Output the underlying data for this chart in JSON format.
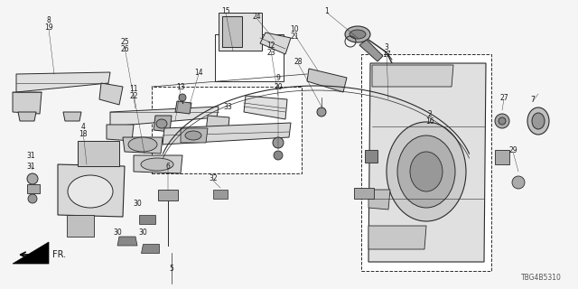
{
  "part_number": "TBG4B5310",
  "bg_color": "#f5f5f5",
  "lc": "#2a2a2a",
  "tc": "#1a1a1a",
  "figsize": [
    6.4,
    3.2
  ],
  "dpi": 100
}
